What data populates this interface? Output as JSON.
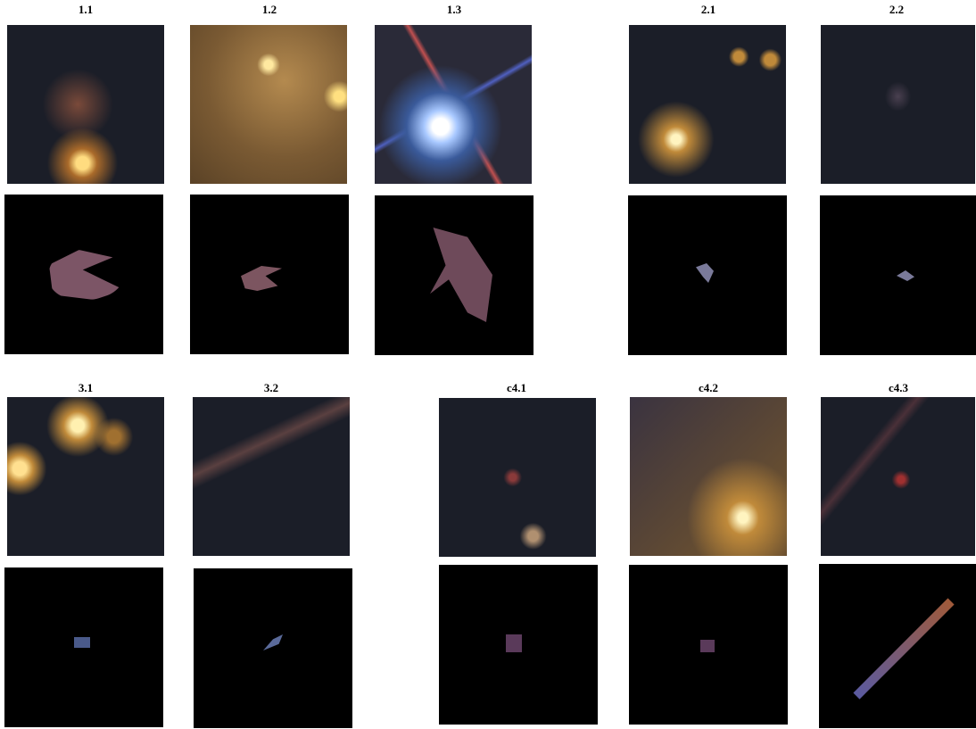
{
  "panels": [
    {
      "label": "1.1"
    },
    {
      "label": "1.2"
    },
    {
      "label": "1.3"
    },
    {
      "label": "2.1"
    },
    {
      "label": "2.2"
    },
    {
      "label": "3.1"
    },
    {
      "label": "3.2"
    },
    {
      "label": "c4.1"
    },
    {
      "label": "c4.2"
    },
    {
      "label": "c4.3"
    }
  ]
}
